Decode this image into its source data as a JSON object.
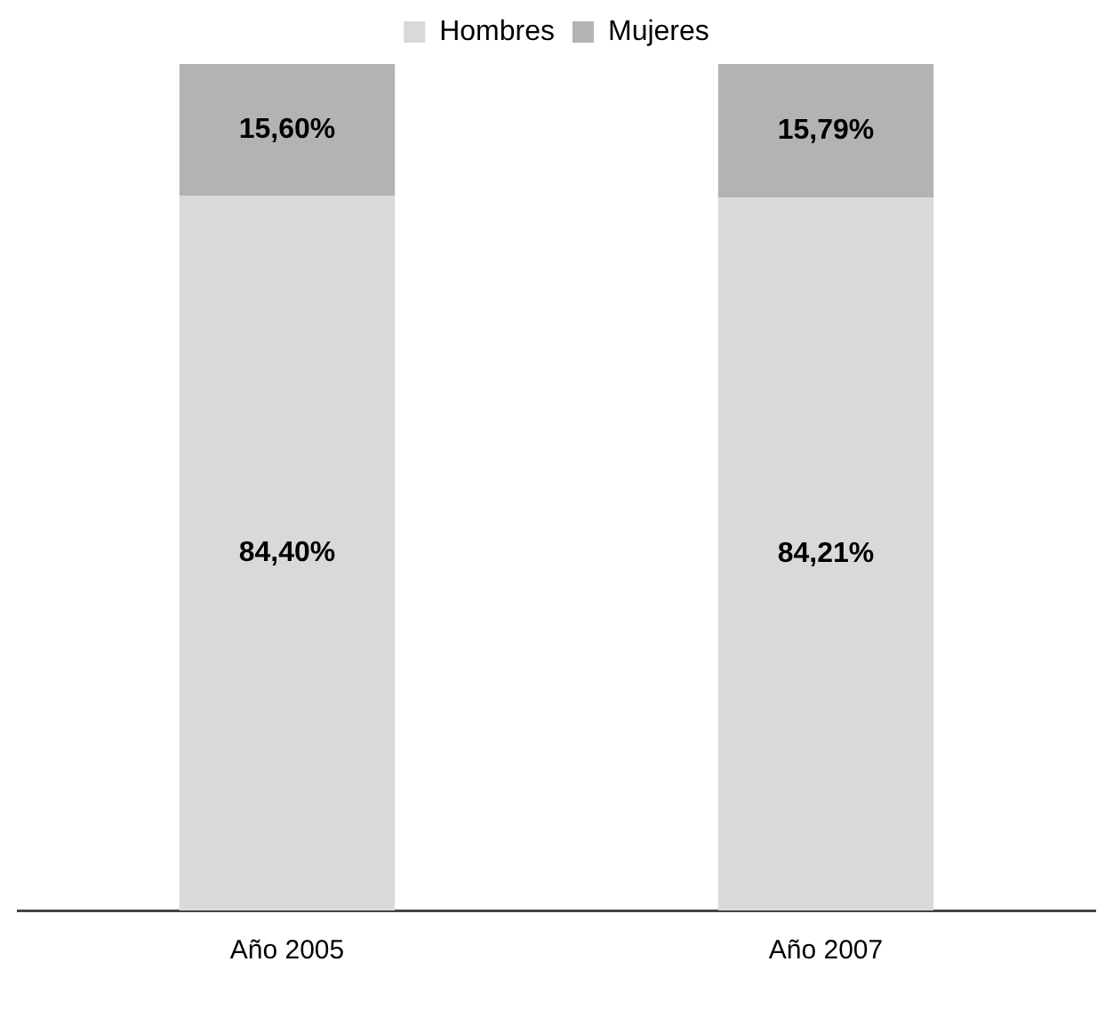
{
  "chart_data": {
    "type": "bar",
    "stacked": true,
    "categories": [
      "Año 2005",
      "Año 2007"
    ],
    "series": [
      {
        "name": "Hombres",
        "color": "#d9d9d9",
        "values": [
          84.4,
          84.21
        ],
        "value_labels": [
          "84,40%",
          "84,21%"
        ]
      },
      {
        "name": "Mujeres",
        "color": "#b3b3b3",
        "values": [
          15.6,
          15.79
        ],
        "value_labels": [
          "15,60%",
          "15,79%"
        ]
      }
    ],
    "legend": "top",
    "grid": false,
    "tick_labels": "x"
  }
}
